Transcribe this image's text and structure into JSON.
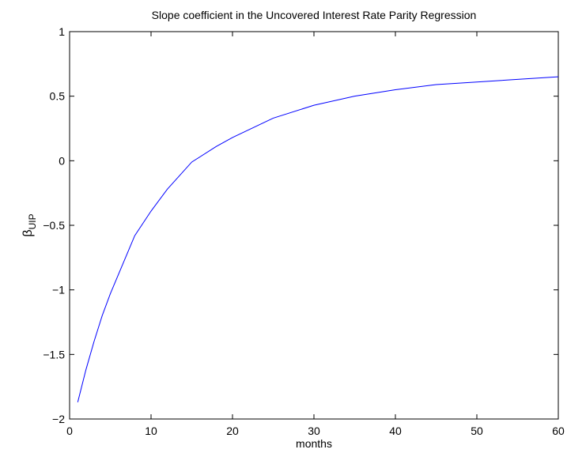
{
  "chart_data": {
    "type": "line",
    "title": "Slope coefficient in the Uncovered Interest Rate Parity Regression",
    "xlabel": "months",
    "ylabel": {
      "symbol": "β",
      "subscript": "UIP"
    },
    "x": [
      1,
      2,
      3,
      4,
      5,
      6,
      8,
      10,
      12,
      15,
      18,
      20,
      25,
      30,
      35,
      40,
      45,
      50,
      55,
      60
    ],
    "series": [
      {
        "color": "#0000ff",
        "values": [
          -1.87,
          -1.62,
          -1.4,
          -1.2,
          -1.03,
          -0.88,
          -0.58,
          -0.39,
          -0.22,
          -0.01,
          0.11,
          0.18,
          0.33,
          0.43,
          0.5,
          0.55,
          0.59,
          0.61,
          0.63,
          0.65
        ]
      }
    ],
    "xlim": [
      0,
      60
    ],
    "xticks": [
      0,
      10,
      20,
      30,
      40,
      50,
      60
    ],
    "ylim": [
      -2,
      1
    ],
    "yticks": [
      {
        "value": -2,
        "label": "−2"
      },
      {
        "value": -1.5,
        "label": "−1.5"
      },
      {
        "value": -1,
        "label": "−1"
      },
      {
        "value": -0.5,
        "label": "−0.5"
      },
      0,
      0.5,
      1
    ],
    "grid": false
  }
}
